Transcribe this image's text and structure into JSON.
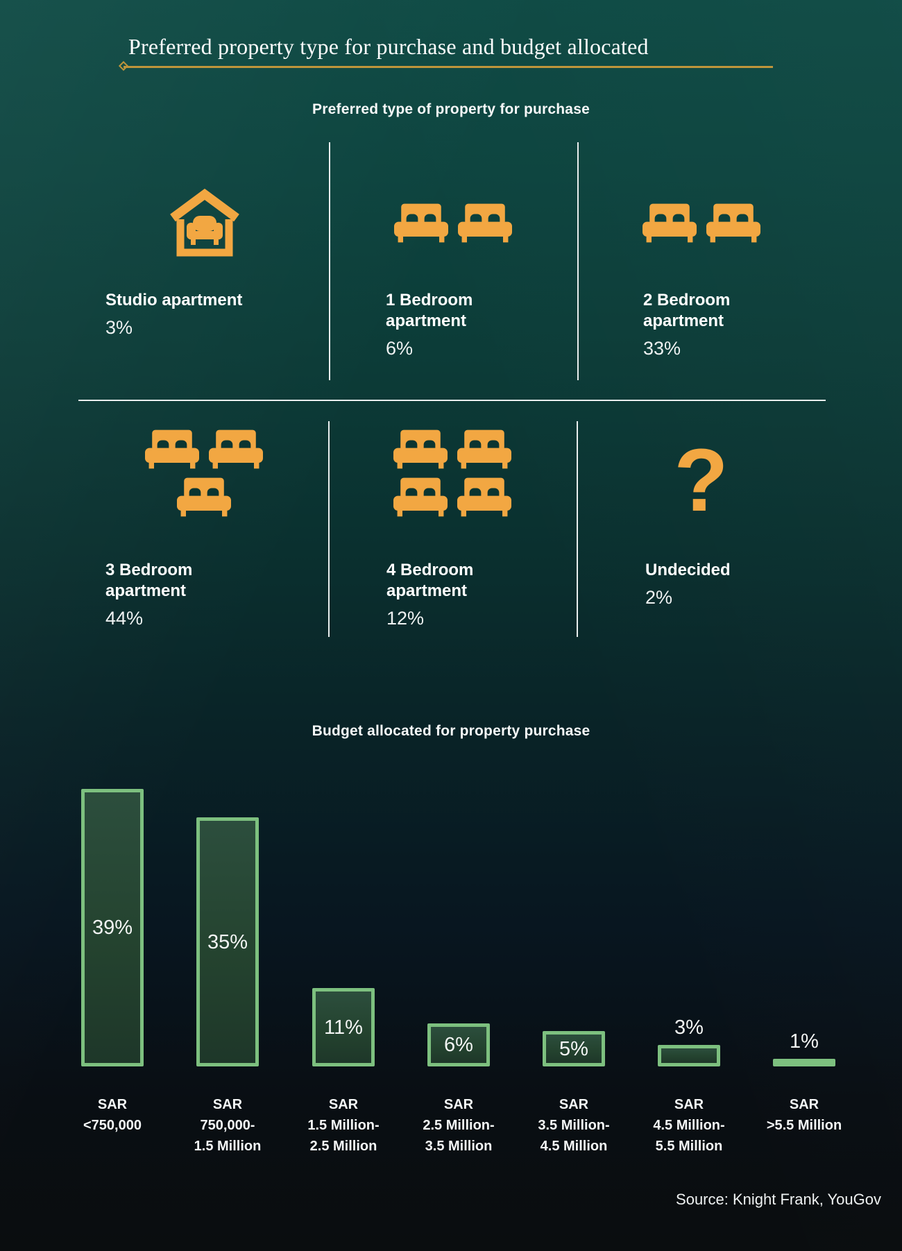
{
  "header": {
    "title": "Preferred property type for purchase and budget allocated"
  },
  "footer": {
    "source": "Source: Knight Frank, YouGov"
  },
  "colors": {
    "background_top_teal": "#0e4a44",
    "background_bottom_dark": "#0a0d0f",
    "accent_gold": "#bf953b",
    "icon_orange": "#f2a742",
    "bar_border_green": "#7dc07f",
    "bar_fill_dark_green": "#24432f",
    "divider_white": "#e9eeee"
  },
  "chart_data": [
    {
      "type": "pictogram",
      "title": "Preferred type of property for purchase",
      "categories": [
        "Studio apartment",
        "1 Bedroom apartment",
        "2 Bedroom apartment",
        "3 Bedroom apartment",
        "4 Bedroom apartment",
        "Undecided"
      ],
      "values": [
        3,
        6,
        33,
        44,
        12,
        2
      ],
      "unit": "percent",
      "icon_color": "#f2a742",
      "items": [
        {
          "label": "Studio apartment",
          "value_label": "3%",
          "icon": "studio-house-icon"
        },
        {
          "label": "1 Bedroom\napartment",
          "value_label": "6%",
          "icon": "two-beds-icon"
        },
        {
          "label": "2 Bedroom\napartment",
          "value_label": "33%",
          "icon": "two-beds-icon"
        },
        {
          "label": "3 Bedroom\napartment",
          "value_label": "44%",
          "icon": "three-beds-icon"
        },
        {
          "label": "4 Bedroom\napartment",
          "value_label": "12%",
          "icon": "four-beds-icon"
        },
        {
          "label": "Undecided",
          "value_label": "2%",
          "icon": "question-mark-icon"
        }
      ]
    },
    {
      "type": "bar",
      "title": "Budget allocated for property purchase",
      "categories": [
        "SAR <750,000",
        "SAR 750,000-1.5 Million",
        "SAR 1.5 Million-2.5 Million",
        "SAR 2.5 Million-3.5 Million",
        "SAR 3.5 Million-4.5 Million",
        "SAR 4.5 Million-5.5 Million",
        "SAR >5.5 Million"
      ],
      "values": [
        39,
        35,
        11,
        6,
        5,
        3,
        1
      ],
      "unit": "percent",
      "ylim": [
        0,
        41
      ],
      "grid": false,
      "legend": false,
      "value_labels": [
        "39%",
        "35%",
        "11%",
        "6%",
        "5%",
        "3%",
        "1%"
      ],
      "value_label_rule": "inside bar when value >= 5, above bar otherwise",
      "category_labels": [
        "SAR\n<750,000",
        "SAR\n750,000-\n1.5 Million",
        "SAR\n1.5 Million-\n2.5 Million",
        "SAR\n2.5 Million-\n3.5 Million",
        "SAR\n3.5 Million-\n4.5 Million",
        "SAR\n4.5 Million-\n5.5 Million",
        "SAR\n>5.5 Million"
      ]
    }
  ]
}
